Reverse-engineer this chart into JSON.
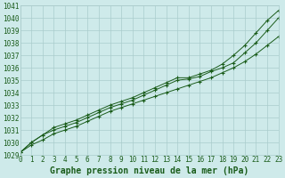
{
  "title": "Graphe pression niveau de la mer (hPa)",
  "bg_color": "#ceeaea",
  "grid_color": "#aacccc",
  "line_color": "#1a5c1a",
  "xmin": 0,
  "xmax": 23,
  "ymin": 1029,
  "ymax": 1041,
  "xticks": [
    0,
    1,
    2,
    3,
    4,
    5,
    6,
    7,
    8,
    9,
    10,
    11,
    12,
    13,
    14,
    15,
    16,
    17,
    18,
    19,
    20,
    21,
    22,
    23
  ],
  "yticks": [
    1029,
    1030,
    1031,
    1032,
    1033,
    1034,
    1035,
    1036,
    1037,
    1038,
    1039,
    1040,
    1041
  ],
  "series": [
    [
      1029.2,
      1029.8,
      1030.2,
      1030.7,
      1031.0,
      1031.3,
      1031.7,
      1032.1,
      1032.5,
      1032.8,
      1033.1,
      1033.4,
      1033.7,
      1034.0,
      1034.3,
      1034.6,
      1034.9,
      1035.2,
      1035.6,
      1036.0,
      1036.5,
      1037.1,
      1037.8,
      1038.5
    ],
    [
      1029.2,
      1030.0,
      1030.6,
      1031.0,
      1031.3,
      1031.6,
      1032.0,
      1032.4,
      1032.8,
      1033.1,
      1033.4,
      1033.8,
      1034.2,
      1034.6,
      1035.0,
      1035.1,
      1035.3,
      1035.7,
      1036.0,
      1036.4,
      1037.2,
      1038.0,
      1039.0,
      1040.0
    ],
    [
      1029.2,
      1030.0,
      1030.6,
      1031.2,
      1031.5,
      1031.8,
      1032.2,
      1032.6,
      1033.0,
      1033.3,
      1033.6,
      1034.0,
      1034.4,
      1034.8,
      1035.2,
      1035.2,
      1035.5,
      1035.8,
      1036.3,
      1037.0,
      1037.8,
      1038.8,
      1039.8,
      1040.6
    ]
  ],
  "title_fontsize": 7,
  "tick_fontsize": 5.5,
  "tick_color": "#1a5c1a",
  "axis_label_color": "#1a5c1a"
}
